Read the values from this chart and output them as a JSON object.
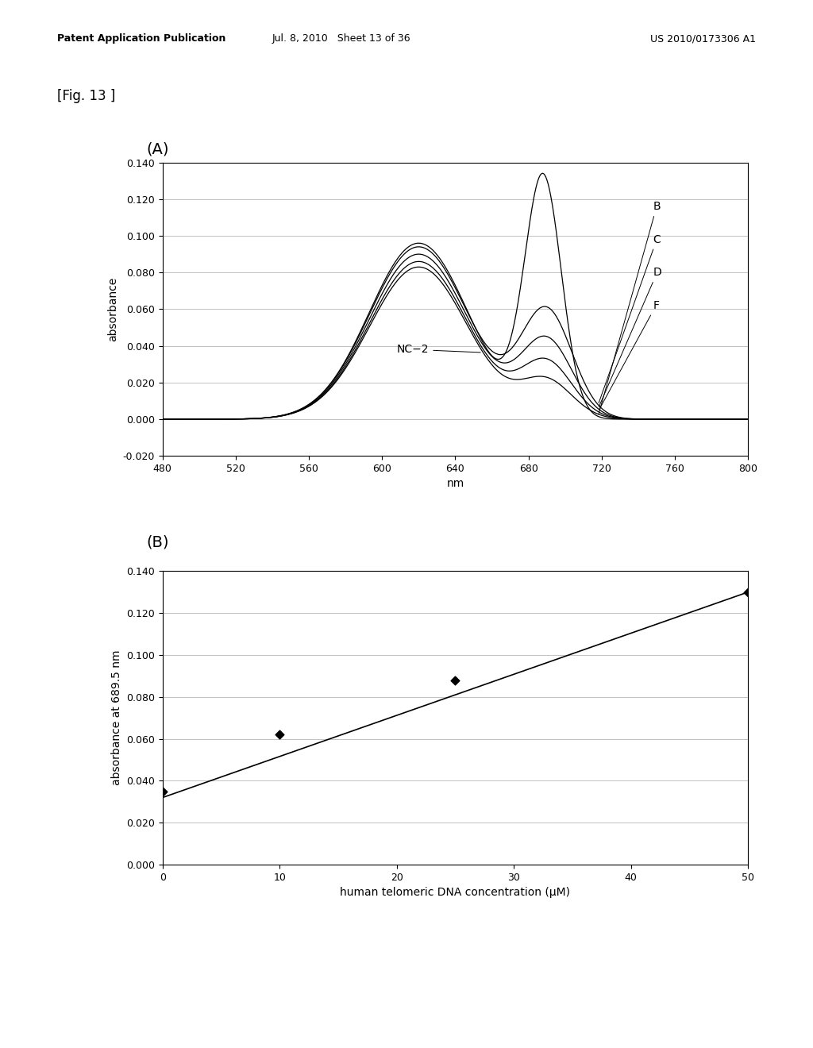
{
  "fig_label": "[Fig. 13 ]",
  "panel_A_label": "(A)",
  "panel_B_label": "(B)",
  "header_left": "Patent Application Publication",
  "header_mid": "Jul. 8, 2010   Sheet 13 of 36",
  "header_right": "US 2010/0173306 A1",
  "plot_A": {
    "xlabel": "nm",
    "ylabel": "absorbance",
    "xlim": [
      480,
      800
    ],
    "ylim": [
      -0.02,
      0.14
    ],
    "yticks": [
      -0.02,
      0.0,
      0.02,
      0.04,
      0.06,
      0.08,
      0.1,
      0.12,
      0.14
    ],
    "xticks": [
      480,
      520,
      560,
      600,
      640,
      680,
      720,
      760,
      800
    ],
    "curve_labels": [
      "B",
      "C",
      "D",
      "F",
      "NC-2"
    ],
    "bg_color": "#ffffff",
    "line_color": "#000000"
  },
  "plot_B": {
    "xlabel": "human telomeric DNA concentration (μM)",
    "ylabel": "absorbance at 689.5 nm",
    "xlim": [
      0,
      50
    ],
    "ylim": [
      0.0,
      0.14
    ],
    "yticks": [
      0.0,
      0.02,
      0.04,
      0.06,
      0.08,
      0.1,
      0.12,
      0.14
    ],
    "xticks": [
      0,
      10,
      20,
      30,
      40,
      50
    ],
    "scatter_x": [
      0,
      10,
      25,
      50
    ],
    "scatter_y": [
      0.035,
      0.062,
      0.088,
      0.13
    ],
    "line_x": [
      0,
      50
    ],
    "line_y": [
      0.032,
      0.13
    ],
    "bg_color": "#ffffff",
    "line_color": "#000000",
    "marker_color": "#000000"
  }
}
